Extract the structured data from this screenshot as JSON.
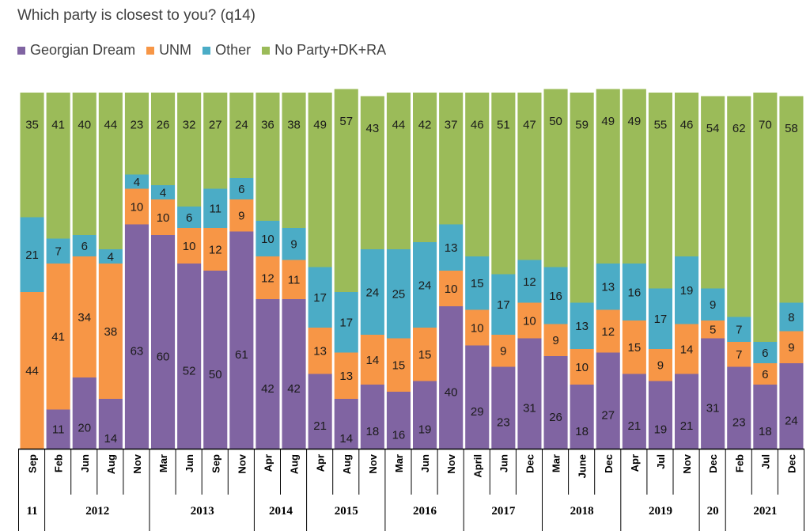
{
  "chart_data": {
    "type": "bar",
    "stacked": true,
    "normalized": true,
    "subtitle": "Which party is closest to you? (q14)",
    "legend_items": [
      "Georgian Dream",
      "UNM",
      "Other",
      "No Party+DK+RA"
    ],
    "colors": [
      "#8064a2",
      "#f79646",
      "#4bacc6",
      "#9bbb59"
    ],
    "categories": [
      "Sep",
      "Feb",
      "Jun",
      "Aug",
      "Nov",
      "Mar",
      "Jun",
      "Sep",
      "Nov",
      "Apr",
      "Aug",
      "Apr",
      "Aug",
      "Nov",
      "Mar",
      "Jun",
      "Nov",
      "April",
      "Jun",
      "Dec",
      "Mar",
      "June",
      "Dec",
      "Apr",
      "Jul",
      "Nov",
      "Dec",
      "Feb",
      "Jul",
      "Dec"
    ],
    "years": [
      {
        "label": "11",
        "span": 1
      },
      {
        "label": "2012",
        "span": 4
      },
      {
        "label": "2013",
        "span": 4
      },
      {
        "label": "2014",
        "span": 2
      },
      {
        "label": "2015",
        "span": 3
      },
      {
        "label": "2016",
        "span": 3
      },
      {
        "label": "2017",
        "span": 3
      },
      {
        "label": "2018",
        "span": 3
      },
      {
        "label": "2019",
        "span": 3
      },
      {
        "label": "20",
        "span": 1
      },
      {
        "label": "2021",
        "span": 3
      }
    ],
    "series": [
      {
        "name": "Georgian Dream",
        "values": [
          0,
          11,
          20,
          14,
          63,
          60,
          52,
          50,
          61,
          42,
          42,
          21,
          14,
          18,
          16,
          19,
          40,
          29,
          23,
          31,
          26,
          18,
          27,
          21,
          19,
          21,
          31,
          23,
          18,
          24
        ]
      },
      {
        "name": "UNM",
        "values": [
          44,
          41,
          34,
          38,
          10,
          10,
          10,
          12,
          9,
          12,
          11,
          13,
          13,
          14,
          15,
          15,
          10,
          10,
          9,
          10,
          9,
          10,
          12,
          15,
          9,
          14,
          5,
          7,
          6,
          9
        ]
      },
      {
        "name": "Other",
        "values": [
          21,
          7,
          6,
          4,
          4,
          4,
          6,
          11,
          6,
          10,
          9,
          17,
          17,
          24,
          25,
          24,
          13,
          15,
          17,
          12,
          16,
          13,
          13,
          16,
          17,
          19,
          9,
          7,
          6,
          8
        ]
      },
      {
        "name": "No Party+DK+RA",
        "values": [
          35,
          41,
          40,
          44,
          23,
          26,
          32,
          27,
          24,
          36,
          38,
          49,
          57,
          43,
          44,
          42,
          37,
          46,
          51,
          47,
          50,
          59,
          49,
          49,
          55,
          46,
          54,
          62,
          70,
          58
        ]
      }
    ]
  }
}
